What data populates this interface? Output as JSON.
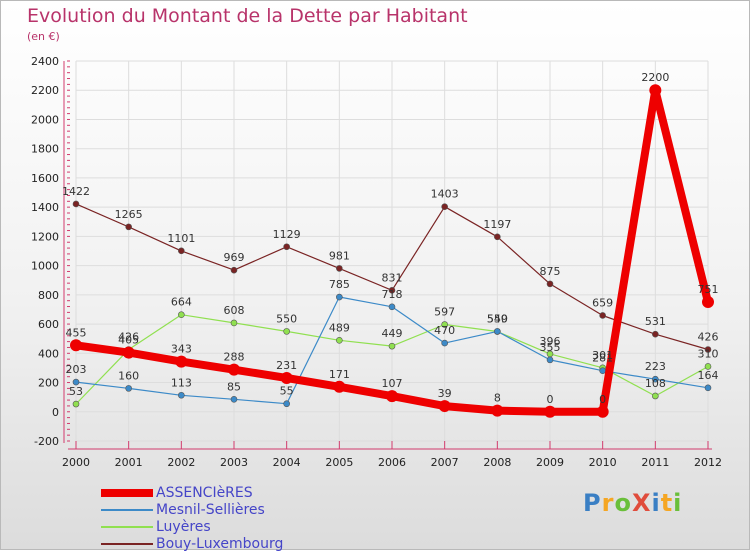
{
  "title": "Evolution du Montant de la Dette par Habitant",
  "subtitle": "(en €)",
  "logo": {
    "text": "ProXiti",
    "colors": [
      "#3a7fc4",
      "#f5a623",
      "#6abf3a",
      "#e04c3c",
      "#3a7fc4",
      "#f5a623",
      "#6abf3a"
    ]
  },
  "chart_data": {
    "type": "line",
    "x": [
      "2000",
      "2001",
      "2002",
      "2003",
      "2004",
      "2005",
      "2006",
      "2007",
      "2008",
      "2009",
      "2010",
      "2011",
      "2012"
    ],
    "ylim": [
      -200,
      2400
    ],
    "yticks": [
      "-200",
      "0",
      "200",
      "400",
      "600",
      "800",
      "1000",
      "1200",
      "1400",
      "1600",
      "1800",
      "2000",
      "2200",
      "2400"
    ],
    "grid": true,
    "legend_position": "bottom-left",
    "series": [
      {
        "name": "ASSENCIèRES",
        "color": "#ee0000",
        "values": [
          455,
          405,
          343,
          288,
          231,
          171,
          107,
          39,
          8,
          0,
          0,
          2200,
          751
        ],
        "labels": [
          "455",
          "405",
          "343",
          "288",
          "231",
          "171",
          "107",
          "39",
          "8",
          "0",
          "0",
          "2200",
          "751"
        ]
      },
      {
        "name": "Mesnil-Sellières",
        "color": "#3c8ac8",
        "values": [
          203,
          160,
          113,
          85,
          55,
          785,
          718,
          470,
          550,
          355,
          281,
          223,
          164
        ],
        "labels": [
          "203",
          "160",
          "113",
          "85",
          "55",
          "785",
          "718",
          "470",
          "550",
          "355",
          "281",
          "223",
          "164"
        ]
      },
      {
        "name": "Luyères",
        "color": "#90e050",
        "values": [
          53,
          426,
          664,
          608,
          550,
          489,
          449,
          597,
          549,
          396,
          301,
          108,
          310
        ],
        "labels": [
          "53",
          "426",
          "664",
          "608",
          "550",
          "489",
          "449",
          "597",
          "549",
          "396",
          "301",
          "108",
          "310"
        ]
      },
      {
        "name": "Bouy-Luxembourg",
        "color": "#7a2424",
        "values": [
          1422,
          1265,
          1101,
          969,
          1129,
          981,
          831,
          1403,
          1197,
          875,
          659,
          531,
          426
        ],
        "labels": [
          "1422",
          "1265",
          "1101",
          "969",
          "1129",
          "981",
          "831",
          "1403",
          "1197",
          "875",
          "659",
          "531",
          "426"
        ]
      }
    ]
  }
}
